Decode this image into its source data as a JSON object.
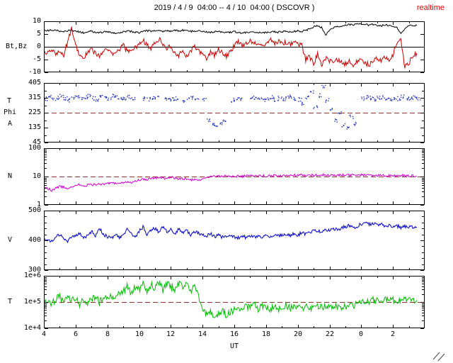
{
  "header": {
    "title": "2019 / 4 / 9  04:00 -- 4 / 10  04:00 ( DSCOVR )",
    "realtime_label": "realtime"
  },
  "x_axis": {
    "label": "UT",
    "lim_hours_from_start": [
      0,
      24
    ],
    "ticks": [
      {
        "t": 0,
        "label": "4"
      },
      {
        "t": 2,
        "label": "6"
      },
      {
        "t": 4,
        "label": "8"
      },
      {
        "t": 6,
        "label": "10"
      },
      {
        "t": 8,
        "label": "12"
      },
      {
        "t": 10,
        "label": "14"
      },
      {
        "t": 12,
        "label": "16"
      },
      {
        "t": 14,
        "label": "18"
      },
      {
        "t": 16,
        "label": "20"
      },
      {
        "t": 18,
        "label": "22"
      },
      {
        "t": 20,
        "label": "0"
      },
      {
        "t": 22,
        "label": "2"
      }
    ]
  },
  "colors": {
    "background": "#ffffff",
    "frame": "#000000",
    "ref_line": "#993333",
    "realtime": "#ee0000",
    "bt": "#000000",
    "bz": "#cc0000",
    "phi": "#2233bb",
    "density": "#cc00cc",
    "speed": "#0000cc",
    "temperature": "#00bb00"
  },
  "chart_data": [
    {
      "panel": "imf",
      "type": "line",
      "scale": "linear",
      "ylabel": "Bt,Bz",
      "ylim": [
        -10,
        10
      ],
      "yticks": [
        {
          "v": 10,
          "label": "10"
        },
        {
          "v": 5,
          "label": "5"
        },
        {
          "v": 0,
          "label": "0"
        },
        {
          "v": -5,
          "label": "-5"
        },
        {
          "v": -10,
          "label": "-10"
        }
      ],
      "zero_line": 0,
      "x0": 0,
      "dx": 0.25,
      "series": [
        {
          "name": "Bt",
          "color": "#000000",
          "noise": 0.35,
          "values": [
            6.5,
            6.3,
            6.6,
            6.4,
            6.2,
            6.0,
            6.3,
            6.5,
            6.2,
            5.8,
            5.5,
            5.9,
            6.1,
            5.7,
            5.4,
            5.8,
            6.0,
            5.5,
            5.2,
            5.6,
            5.9,
            6.2,
            6.0,
            5.7,
            5.5,
            6.0,
            6.3,
            6.1,
            6.4,
            6.2,
            6.0,
            6.3,
            6.1,
            6.4,
            6.2,
            6.5,
            6.3,
            6.0,
            6.2,
            6.4,
            6.1,
            5.8,
            5.6,
            5.9,
            6.1,
            5.8,
            5.5,
            5.7,
            6.0,
            5.6,
            5.3,
            5.6,
            5.9,
            5.6,
            5.4,
            5.7,
            5.5,
            5.8,
            6.0,
            5.7,
            5.9,
            6.1,
            5.8,
            6.0,
            6.2,
            6.0,
            6.4,
            7.0,
            7.8,
            8.3,
            7.6,
            4.5,
            6.8,
            7.5,
            8.2,
            7.9,
            8.4,
            8.8,
            8.5,
            9.0,
            8.7,
            8.9,
            8.4,
            8.8,
            8.5,
            8.2,
            8.6,
            8.3,
            8.0,
            7.6,
            5.2,
            7.0,
            8.2,
            8.5,
            8.3
          ]
        },
        {
          "name": "Bz",
          "color": "#cc0000",
          "noise": 1.0,
          "values": [
            -2.0,
            -2.5,
            -1.5,
            -2.8,
            -2.0,
            -3.0,
            2.0,
            7.0,
            1.0,
            -3.5,
            -4.2,
            -2.0,
            -1.0,
            -2.5,
            -3.8,
            -1.5,
            -0.5,
            -2.0,
            -3.0,
            -1.0,
            0.5,
            -1.5,
            -2.5,
            -0.5,
            1.0,
            2.5,
            0.5,
            -1.0,
            1.5,
            3.0,
            1.0,
            -0.5,
            0.0,
            -2.0,
            -3.5,
            -1.5,
            -4.0,
            -2.0,
            0.5,
            -1.5,
            -3.0,
            -4.5,
            -2.0,
            -3.5,
            -1.0,
            -2.5,
            -4.0,
            -2.0,
            0.5,
            2.0,
            0.0,
            1.5,
            2.5,
            1.0,
            2.0,
            0.5,
            1.5,
            2.8,
            1.2,
            2.2,
            1.0,
            1.8,
            0.8,
            1.5,
            1.2,
            0.5,
            -5.0,
            -4.0,
            -6.5,
            -3.0,
            -7.0,
            -4.5,
            -5.5,
            -6.2,
            -4.8,
            -6.0,
            -6.8,
            -5.5,
            -7.2,
            -6.0,
            -5.0,
            -6.5,
            -7.0,
            -5.8,
            -4.5,
            -5.2,
            -3.8,
            -4.8,
            -3.0,
            2.0,
            3.0,
            -8.0,
            -6.5,
            -3.5,
            -2.5
          ]
        }
      ]
    },
    {
      "panel": "phi_angle",
      "type": "scatter",
      "scale": "linear",
      "ylabels": [
        "T",
        "Phi",
        "A"
      ],
      "ylim": [
        45,
        405
      ],
      "yticks": [
        {
          "v": 405,
          "label": "405"
        },
        {
          "v": 315,
          "label": "315"
        },
        {
          "v": 225,
          "label": "225"
        },
        {
          "v": 135,
          "label": "135"
        },
        {
          "v": 45,
          "label": "45"
        }
      ],
      "yminor": [
        90,
        180,
        270,
        360
      ],
      "ref_line": 225,
      "x0": 0,
      "dx": 0.25,
      "series": [
        {
          "name": "Phi",
          "color": "#2233bb",
          "noise": 12,
          "values": [
            310,
            320,
            305,
            315,
            325,
            310,
            300,
            318,
            322,
            308,
            315,
            330,
            312,
            305,
            320,
            315,
            310,
            325,
            318,
            308,
            312,
            318,
            305,
            null,
            null,
            310,
            305,
            315,
            320,
            null,
            310,
            308,
            305,
            312,
            null,
            300,
            308,
            315,
            310,
            null,
            305,
            180,
            160,
            140,
            155,
            170,
            null,
            300,
            310,
            305,
            null,
            null,
            315,
            308,
            312,
            305,
            310,
            318,
            305,
            312,
            308,
            315,
            320,
            310,
            305,
            280,
            320,
            350,
            260,
            330,
            380,
            300,
            240,
            180,
            220,
            150,
            130,
            200,
            160,
            null,
            310,
            320,
            315,
            308,
            312,
            318,
            310,
            305,
            315,
            310,
            320,
            312,
            308,
            315,
            310
          ]
        }
      ]
    },
    {
      "panel": "density",
      "type": "line",
      "scale": "log",
      "ylabel": "N",
      "ylim": [
        1,
        100
      ],
      "yticks": [
        {
          "v": 100,
          "label": "100"
        },
        {
          "v": 10,
          "label": "10"
        },
        {
          "v": 1,
          "label": "1"
        }
      ],
      "ref_line": 10,
      "x0": 0,
      "dx": 0.25,
      "series": [
        {
          "name": "N",
          "color": "#cc00cc",
          "noise": 0.04,
          "values": [
            4.2,
            3.8,
            3.2,
            4.0,
            4.5,
            4.2,
            3.9,
            4.3,
            4.8,
            5.2,
            4.6,
            5.0,
            5.3,
            5.0,
            5.5,
            5.2,
            5.6,
            6.0,
            5.8,
            6.2,
            6.0,
            6.5,
            6.3,
            6.8,
            7.5,
            8.0,
            7.8,
            8.5,
            8.8,
            9.2,
            8.5,
            9.0,
            9.5,
            9.0,
            8.0,
            8.5,
            8.2,
            7.5,
            8.0,
            7.0,
            9.0,
            9.5,
            10.0,
            9.8,
            10.2,
            10.0,
            10.5,
            10.3,
            10.0,
            10.4,
            10.2,
            10.6,
            10.5,
            10.8,
            10.4,
            10.7,
            10.5,
            10.9,
            11.0,
            10.6,
            10.8,
            11.2,
            10.9,
            11.1,
            11.0,
            11.3,
            10.8,
            11.2,
            11.0,
            11.5,
            11.2,
            11.4,
            11.0,
            11.3,
            11.1,
            11.5,
            11.2,
            11.0,
            11.4,
            11.1,
            11.3,
            11.0,
            10.8,
            11.2,
            10.9,
            11.1,
            10.7,
            11.0,
            10.8,
            10.5,
            10.9,
            10.6,
            10.4,
            10.6,
            10.5
          ]
        }
      ]
    },
    {
      "panel": "speed",
      "type": "line",
      "scale": "linear",
      "ylabel": "V",
      "ylim": [
        300,
        500
      ],
      "yticks": [
        {
          "v": 500,
          "label": "500"
        },
        {
          "v": 400,
          "label": "400"
        },
        {
          "v": 300,
          "label": "300"
        }
      ],
      "yminor": [
        320,
        340,
        360,
        380,
        420,
        440,
        460,
        480
      ],
      "x0": 0,
      "dx": 0.25,
      "series": [
        {
          "name": "V",
          "color": "#0000cc",
          "noise": 6,
          "values": [
            398,
            405,
            395,
            410,
            420,
            408,
            398,
            415,
            412,
            425,
            405,
            418,
            430,
            415,
            440,
            420,
            412,
            408,
            418,
            410,
            415,
            440,
            425,
            410,
            430,
            445,
            420,
            435,
            440,
            425,
            445,
            430,
            435,
            420,
            440,
            428,
            432,
            418,
            430,
            425,
            420,
            415,
            422,
            412,
            418,
            410,
            415,
            420,
            412,
            408,
            415,
            410,
            414,
            410,
            416,
            412,
            415,
            412,
            418,
            414,
            416,
            420,
            415,
            422,
            418,
            425,
            420,
            428,
            430,
            435,
            428,
            438,
            432,
            440,
            435,
            442,
            445,
            450,
            442,
            448,
            455,
            460,
            452,
            458,
            450,
            455,
            448,
            452,
            445,
            450,
            442,
            448,
            444,
            446,
            445
          ]
        }
      ]
    },
    {
      "panel": "temperature",
      "type": "line",
      "scale": "log",
      "ylabel": "T",
      "ylim": [
        10000,
        1000000
      ],
      "yticks": [
        {
          "v": 1000000,
          "label": "1e+6"
        },
        {
          "v": 100000,
          "label": "1e+5"
        },
        {
          "v": 10000,
          "label": "1e+4"
        }
      ],
      "ref_line": 100000,
      "x0": 0,
      "dx": 0.25,
      "series": [
        {
          "name": "T",
          "color": "#00bb00",
          "noise": 0.13,
          "values": [
            90000,
            110000,
            85000,
            130000,
            160000,
            95000,
            200000,
            120000,
            150000,
            85000,
            140000,
            100000,
            120000,
            160000,
            100000,
            140000,
            130000,
            170000,
            150000,
            200000,
            250000,
            400000,
            200000,
            350000,
            300000,
            500000,
            250000,
            450000,
            350000,
            600000,
            280000,
            500000,
            400000,
            300000,
            550000,
            350000,
            450000,
            250000,
            380000,
            150000,
            50000,
            35000,
            42000,
            30000,
            38000,
            45000,
            32000,
            40000,
            50000,
            65000,
            45000,
            70000,
            60000,
            80000,
            55000,
            75000,
            65000,
            50000,
            70000,
            55000,
            60000,
            72000,
            58000,
            68000,
            62000,
            55000,
            65000,
            58000,
            60000,
            68000,
            63000,
            70000,
            65000,
            60000,
            68000,
            62000,
            70000,
            80000,
            75000,
            85000,
            95000,
            110000,
            100000,
            120000,
            110000,
            125000,
            115000,
            130000,
            120000,
            115000,
            125000,
            118000,
            115000,
            120000,
            118000
          ]
        }
      ]
    }
  ]
}
